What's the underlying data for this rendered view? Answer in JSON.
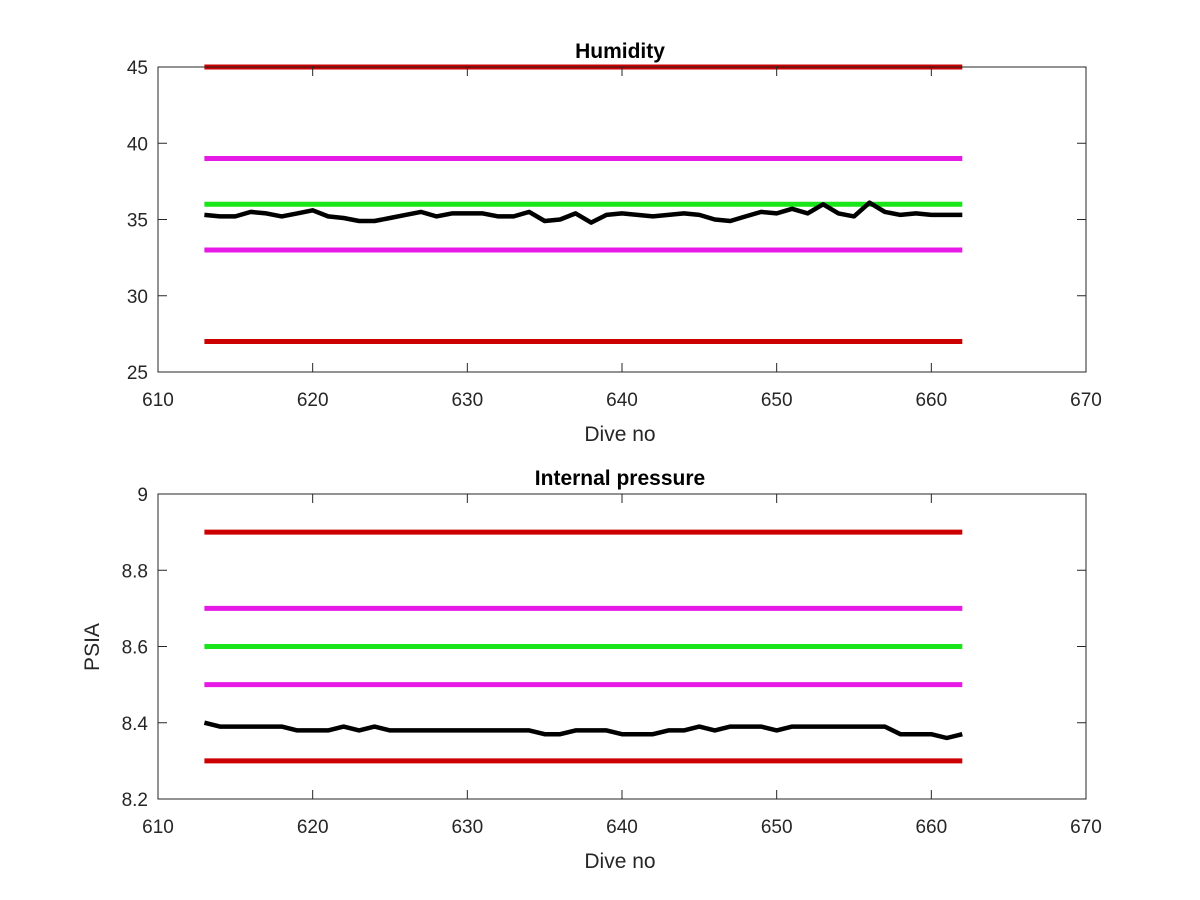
{
  "chart_data": [
    {
      "type": "line",
      "title": "Humidity",
      "xlabel": "Dive no",
      "ylabel": "",
      "xlim": [
        610,
        670
      ],
      "ylim": [
        25,
        45
      ],
      "xticks": [
        "610",
        "620",
        "630",
        "640",
        "650",
        "660",
        "670"
      ],
      "yticks": [
        "25",
        "30",
        "35",
        "40",
        "45"
      ],
      "grid": false,
      "legend": "none",
      "series": [
        {
          "role": "limit",
          "color": "#cc0000",
          "x": [
            613,
            662
          ],
          "values": [
            45,
            45
          ]
        },
        {
          "role": "limit",
          "color": "#e619e6",
          "x": [
            613,
            662
          ],
          "values": [
            39,
            39
          ]
        },
        {
          "role": "limit",
          "color": "#19e619",
          "x": [
            613,
            662
          ],
          "values": [
            36,
            36
          ]
        },
        {
          "role": "limit",
          "color": "#e619e6",
          "x": [
            613,
            662
          ],
          "values": [
            33,
            33
          ]
        },
        {
          "role": "limit",
          "color": "#cc0000",
          "x": [
            613,
            662
          ],
          "values": [
            27,
            27
          ]
        },
        {
          "role": "measurement",
          "color": "#000000",
          "x": [
            613,
            614,
            615,
            616,
            617,
            618,
            619,
            620,
            621,
            622,
            623,
            624,
            625,
            626,
            627,
            628,
            629,
            630,
            631,
            632,
            633,
            634,
            635,
            636,
            637,
            638,
            639,
            640,
            641,
            642,
            643,
            644,
            645,
            646,
            647,
            648,
            649,
            650,
            651,
            652,
            653,
            654,
            655,
            656,
            657,
            658,
            659,
            660,
            661,
            662
          ],
          "values": [
            35.3,
            35.2,
            35.2,
            35.5,
            35.4,
            35.2,
            35.4,
            35.6,
            35.2,
            35.1,
            34.9,
            34.9,
            35.1,
            35.3,
            35.5,
            35.2,
            35.4,
            35.4,
            35.4,
            35.2,
            35.2,
            35.5,
            34.9,
            35.0,
            35.4,
            34.8,
            35.3,
            35.4,
            35.3,
            35.2,
            35.3,
            35.4,
            35.3,
            35.0,
            34.9,
            35.2,
            35.5,
            35.4,
            35.7,
            35.4,
            36.0,
            35.4,
            35.2,
            36.1,
            35.5,
            35.3,
            35.4,
            35.3,
            35.3,
            35.3
          ]
        }
      ]
    },
    {
      "type": "line",
      "title": "Internal pressure",
      "xlabel": "Dive no",
      "ylabel": "PSIA",
      "xlim": [
        610,
        670
      ],
      "ylim": [
        8.2,
        9
      ],
      "xticks": [
        "610",
        "620",
        "630",
        "640",
        "650",
        "660",
        "670"
      ],
      "yticks": [
        "8.2",
        "8.4",
        "8.6",
        "8.8",
        "9"
      ],
      "grid": false,
      "legend": "none",
      "series": [
        {
          "role": "limit",
          "color": "#cc0000",
          "x": [
            613,
            662
          ],
          "values": [
            8.9,
            8.9
          ]
        },
        {
          "role": "limit",
          "color": "#e619e6",
          "x": [
            613,
            662
          ],
          "values": [
            8.7,
            8.7
          ]
        },
        {
          "role": "limit",
          "color": "#19e619",
          "x": [
            613,
            662
          ],
          "values": [
            8.6,
            8.6
          ]
        },
        {
          "role": "limit",
          "color": "#e619e6",
          "x": [
            613,
            662
          ],
          "values": [
            8.5,
            8.5
          ]
        },
        {
          "role": "limit",
          "color": "#cc0000",
          "x": [
            613,
            662
          ],
          "values": [
            8.3,
            8.3
          ]
        },
        {
          "role": "measurement",
          "color": "#000000",
          "x": [
            613,
            614,
            615,
            616,
            617,
            618,
            619,
            620,
            621,
            622,
            623,
            624,
            625,
            626,
            627,
            628,
            629,
            630,
            631,
            632,
            633,
            634,
            635,
            636,
            637,
            638,
            639,
            640,
            641,
            642,
            643,
            644,
            645,
            646,
            647,
            648,
            649,
            650,
            651,
            652,
            653,
            654,
            655,
            656,
            657,
            658,
            659,
            660,
            661,
            662
          ],
          "values": [
            8.4,
            8.39,
            8.39,
            8.39,
            8.39,
            8.39,
            8.38,
            8.38,
            8.38,
            8.39,
            8.38,
            8.39,
            8.38,
            8.38,
            8.38,
            8.38,
            8.38,
            8.38,
            8.38,
            8.38,
            8.38,
            8.38,
            8.37,
            8.37,
            8.38,
            8.38,
            8.38,
            8.37,
            8.37,
            8.37,
            8.38,
            8.38,
            8.39,
            8.38,
            8.39,
            8.39,
            8.39,
            8.38,
            8.39,
            8.39,
            8.39,
            8.39,
            8.39,
            8.39,
            8.39,
            8.37,
            8.37,
            8.37,
            8.36,
            8.37
          ]
        }
      ]
    }
  ]
}
